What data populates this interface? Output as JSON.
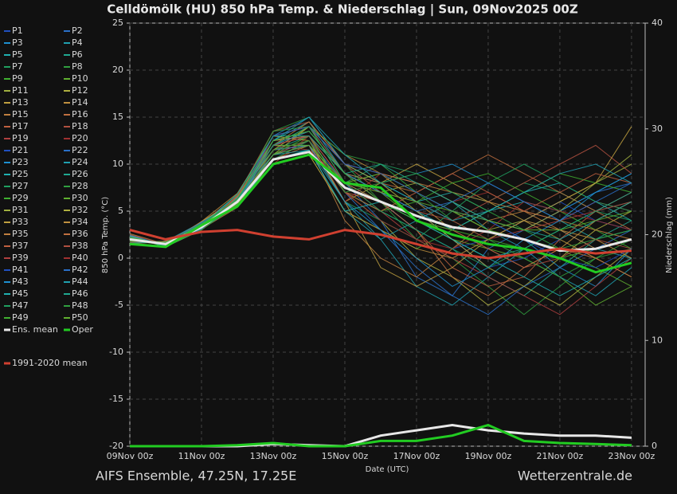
{
  "chart_data": {
    "type": "line",
    "title": "Celldömölk  (HU)  850 hPa Temp. & Niederschlag | Sun, 09Nov2025 00Z",
    "x_label": "Date (UTC)",
    "y_label": "850 hPa Temp. (°C)",
    "y2_label": "Niederschlag (mm)",
    "footer_left": "AIFS Ensemble, 47.25N, 17.25E",
    "footer_right": "Wetterzentrale.de",
    "categories": [
      "09Nov 00z",
      null,
      "11Nov 00z",
      null,
      "13Nov 00z",
      null,
      "15Nov 00z",
      null,
      "17Nov 00z",
      null,
      "19Nov 00z",
      null,
      "21Nov 00z",
      null,
      "23Nov 00z"
    ],
    "ylim": [
      -20,
      25
    ],
    "yticks": [
      -20,
      -15,
      -10,
      -5,
      0,
      5,
      10,
      15,
      20,
      25
    ],
    "y2lim": [
      0,
      40
    ],
    "y2ticks": [
      0,
      10,
      20,
      30,
      40
    ],
    "grid": true,
    "series": [
      {
        "name": "P1",
        "color": "#2050c0",
        "values": [
          2.2,
          1.4,
          3.2,
          6.5,
          12,
          13,
          9,
          7,
          5,
          2,
          -1,
          0,
          2,
          4,
          6
        ]
      },
      {
        "name": "P2",
        "color": "#2a70c8",
        "values": [
          1.8,
          1.6,
          3.6,
          5.8,
          11,
          12.5,
          8,
          4,
          -2,
          -4,
          1,
          3,
          5,
          7,
          8
        ]
      },
      {
        "name": "P3",
        "color": "#1e90d0",
        "values": [
          2.5,
          1.2,
          3.0,
          6.2,
          13,
          14,
          10,
          9,
          8,
          6,
          4,
          2,
          -1,
          -3,
          1
        ]
      },
      {
        "name": "P4",
        "color": "#20a0b0",
        "values": [
          1.6,
          1.8,
          3.8,
          5.5,
          10.5,
          11.5,
          6,
          2,
          -3,
          -5,
          -2,
          1,
          3,
          1,
          0
        ]
      },
      {
        "name": "P5",
        "color": "#20b0b0",
        "values": [
          2.0,
          1.5,
          3.4,
          6.0,
          12.5,
          14.5,
          9,
          8,
          6,
          7,
          5,
          6,
          4,
          2,
          3
        ]
      },
      {
        "name": "P6",
        "color": "#20a890",
        "values": [
          2.3,
          1.3,
          3.1,
          6.8,
          11.5,
          13,
          7,
          5,
          3,
          1,
          -2,
          -4,
          -1,
          2,
          4
        ]
      },
      {
        "name": "P7",
        "color": "#20a060",
        "values": [
          1.9,
          1.7,
          3.7,
          5.9,
          12,
          12,
          8,
          10,
          9,
          7,
          6,
          8,
          7,
          5,
          6
        ]
      },
      {
        "name": "P8",
        "color": "#30a040",
        "values": [
          2.1,
          1.4,
          3.3,
          6.3,
          13.5,
          15,
          10,
          6,
          2,
          0,
          -3,
          -6,
          -3,
          0,
          2
        ]
      },
      {
        "name": "P9",
        "color": "#40b030",
        "values": [
          1.7,
          1.6,
          3.5,
          5.7,
          10,
          11,
          5,
          3,
          1,
          3,
          5,
          7,
          9,
          8,
          7
        ]
      },
      {
        "name": "P10",
        "color": "#60b030",
        "values": [
          2.4,
          1.2,
          3.0,
          6.6,
          12,
          13.5,
          9,
          7,
          4,
          2,
          1,
          0,
          -2,
          -5,
          -3
        ]
      },
      {
        "name": "P11",
        "color": "#a0b040",
        "values": [
          2.0,
          1.5,
          3.6,
          6.1,
          11,
          14,
          8,
          9,
          7,
          5,
          3,
          4,
          6,
          8,
          10
        ]
      },
      {
        "name": "P12",
        "color": "#b0b040",
        "values": [
          1.8,
          1.7,
          3.4,
          5.6,
          12.5,
          13,
          7,
          4,
          0,
          -2,
          -5,
          -3,
          0,
          3,
          5
        ]
      },
      {
        "name": "P13",
        "color": "#c0a040",
        "values": [
          2.2,
          1.3,
          3.2,
          6.4,
          11.5,
          12,
          6,
          8,
          10,
          8,
          6,
          4,
          2,
          0,
          -2
        ]
      },
      {
        "name": "P14",
        "color": "#c09040",
        "values": [
          2.6,
          1.5,
          3.9,
          6.9,
          13,
          14,
          11,
          9,
          6,
          3,
          1,
          -1,
          1,
          4,
          6
        ]
      },
      {
        "name": "P15",
        "color": "#c08040",
        "values": [
          1.5,
          1.8,
          3.1,
          5.4,
          10.5,
          12,
          4,
          0,
          -2,
          1,
          4,
          5,
          3,
          1,
          2
        ]
      },
      {
        "name": "P16",
        "color": "#c07040",
        "values": [
          2.1,
          1.4,
          3.5,
          6.2,
          12,
          13,
          9,
          8,
          7,
          9,
          11,
          9,
          7,
          5,
          3
        ]
      },
      {
        "name": "P17",
        "color": "#c06040",
        "values": [
          1.9,
          1.6,
          3.3,
          5.8,
          11,
          12.5,
          7,
          6,
          3,
          -1,
          -3,
          -2,
          2,
          5,
          7
        ]
      },
      {
        "name": "P18",
        "color": "#b05040",
        "values": [
          2.3,
          1.2,
          3.7,
          6.7,
          13.5,
          14.5,
          10,
          7,
          5,
          4,
          6,
          8,
          10,
          12,
          9
        ]
      },
      {
        "name": "P19",
        "color": "#b04040",
        "values": [
          2.0,
          1.5,
          3.0,
          6.0,
          12,
          11.5,
          8,
          5,
          2,
          0,
          -2,
          -4,
          -6,
          -3,
          0
        ]
      },
      {
        "name": "P20",
        "color": "#a03030",
        "values": [
          1.7,
          1.7,
          3.6,
          5.5,
          10,
          13,
          6,
          9,
          8,
          6,
          7,
          5,
          4,
          6,
          5
        ]
      },
      {
        "name": "P21",
        "color": "#2050c0",
        "values": [
          2.4,
          1.3,
          3.4,
          6.5,
          12.5,
          13.5,
          9,
          6,
          3,
          1,
          2,
          4,
          6,
          4,
          3
        ]
      },
      {
        "name": "P22",
        "color": "#2a70c8",
        "values": [
          1.8,
          1.6,
          3.2,
          5.9,
          11.5,
          12,
          7,
          3,
          -1,
          -4,
          -6,
          -3,
          -1,
          1,
          3
        ]
      },
      {
        "name": "P23",
        "color": "#1e90d0",
        "values": [
          2.2,
          1.4,
          3.8,
          6.3,
          13,
          15,
          10,
          8,
          9,
          10,
          8,
          6,
          5,
          7,
          9
        ]
      },
      {
        "name": "P24",
        "color": "#20a0b0",
        "values": [
          1.6,
          1.8,
          3.1,
          5.6,
          11,
          11.5,
          5,
          2,
          4,
          6,
          3,
          1,
          -2,
          -4,
          -1
        ]
      },
      {
        "name": "P25",
        "color": "#20b0b0",
        "values": [
          2.5,
          1.2,
          3.5,
          6.8,
          12,
          14,
          9,
          7,
          5,
          3,
          5,
          7,
          8,
          6,
          4
        ]
      },
      {
        "name": "P26",
        "color": "#20a890",
        "values": [
          2.0,
          1.5,
          3.3,
          6.1,
          12.5,
          13,
          8,
          6,
          4,
          2,
          0,
          1,
          3,
          5,
          7
        ]
      },
      {
        "name": "P27",
        "color": "#20a060",
        "values": [
          1.9,
          1.7,
          3.6,
          5.7,
          10.5,
          12.5,
          6,
          4,
          2,
          5,
          8,
          10,
          8,
          6,
          5
        ]
      },
      {
        "name": "P28",
        "color": "#30a040",
        "values": [
          2.3,
          1.3,
          3.0,
          6.4,
          13.5,
          14,
          11,
          10,
          7,
          4,
          2,
          0,
          -2,
          0,
          1
        ]
      },
      {
        "name": "P29",
        "color": "#40b030",
        "values": [
          2.1,
          1.5,
          3.7,
          6.0,
          11,
          13,
          7,
          5,
          6,
          8,
          9,
          7,
          5,
          3,
          1
        ]
      },
      {
        "name": "P30",
        "color": "#60b030",
        "values": [
          1.7,
          1.6,
          3.4,
          5.8,
          12,
          12,
          8,
          9,
          7,
          5,
          3,
          2,
          1,
          -1,
          -3
        ]
      },
      {
        "name": "P31",
        "color": "#a0b040",
        "values": [
          2.2,
          1.4,
          3.2,
          6.6,
          12.5,
          13.5,
          9,
          7,
          8,
          6,
          4,
          3,
          5,
          8,
          11
        ]
      },
      {
        "name": "P32",
        "color": "#b0b040",
        "values": [
          1.8,
          1.7,
          3.5,
          5.5,
          11.5,
          14,
          10,
          8,
          5,
          2,
          -1,
          -3,
          -5,
          -2,
          1
        ]
      },
      {
        "name": "P33",
        "color": "#c0a040",
        "values": [
          2.4,
          1.3,
          3.9,
          6.2,
          13,
          12.5,
          6,
          -1,
          -3,
          -1,
          2,
          4,
          6,
          8,
          14
        ]
      },
      {
        "name": "P34",
        "color": "#c09040",
        "values": [
          2.0,
          1.5,
          3.1,
          6.0,
          10,
          11,
          5,
          3,
          1,
          0,
          2,
          4,
          3,
          2,
          0
        ]
      },
      {
        "name": "P35",
        "color": "#c08040",
        "values": [
          1.6,
          1.8,
          3.6,
          5.9,
          12,
          14.5,
          10,
          9,
          8,
          7,
          6,
          5,
          4,
          3,
          2
        ]
      },
      {
        "name": "P36",
        "color": "#c07040",
        "values": [
          2.3,
          1.2,
          3.3,
          6.5,
          12.5,
          13,
          8,
          6,
          3,
          -2,
          -4,
          -1,
          1,
          0,
          -2
        ]
      },
      {
        "name": "P37",
        "color": "#c06040",
        "values": [
          2.1,
          1.6,
          3.4,
          6.3,
          11,
          12,
          7,
          5,
          7,
          9,
          7,
          5,
          7,
          9,
          8
        ]
      },
      {
        "name": "P38",
        "color": "#b05040",
        "values": [
          1.9,
          1.4,
          3.7,
          5.7,
          13,
          14,
          9,
          6,
          4,
          3,
          1,
          -1,
          0,
          2,
          1
        ]
      },
      {
        "name": "P39",
        "color": "#b04040",
        "values": [
          2.5,
          1.5,
          3.0,
          6.7,
          12,
          13,
          8,
          7,
          6,
          4,
          2,
          3,
          4,
          5,
          6
        ]
      },
      {
        "name": "P40",
        "color": "#a03030",
        "values": [
          1.7,
          1.7,
          3.5,
          5.6,
          11.5,
          12.5,
          7,
          4,
          2,
          1,
          3,
          6,
          5,
          4,
          3
        ]
      },
      {
        "name": "P41",
        "color": "#2050c0",
        "values": [
          2.2,
          1.3,
          3.2,
          6.1,
          13,
          14,
          10,
          9,
          7,
          5,
          4,
          2,
          0,
          -1,
          1
        ]
      },
      {
        "name": "P42",
        "color": "#2a70c8",
        "values": [
          1.8,
          1.6,
          3.8,
          5.9,
          12,
          13.5,
          9,
          7,
          5,
          6,
          8,
          6,
          4,
          6,
          8
        ]
      },
      {
        "name": "P43",
        "color": "#1e90d0",
        "values": [
          2.4,
          1.4,
          3.1,
          6.4,
          11,
          12,
          6,
          3,
          0,
          -3,
          -1,
          2,
          4,
          7,
          9
        ]
      },
      {
        "name": "P44",
        "color": "#20a0b0",
        "values": [
          2.0,
          1.5,
          3.6,
          6.0,
          12.5,
          15,
          11,
          8,
          6,
          4,
          5,
          7,
          9,
          10,
          8
        ]
      },
      {
        "name": "P45",
        "color": "#20b0b0",
        "values": [
          1.6,
          1.7,
          3.3,
          5.5,
          10.5,
          11.5,
          5,
          6,
          4,
          2,
          0,
          -2,
          -4,
          -2,
          0
        ]
      },
      {
        "name": "P46",
        "color": "#20a890",
        "values": [
          2.3,
          1.2,
          3.4,
          6.8,
          13,
          13,
          9,
          10,
          8,
          6,
          4,
          3,
          2,
          4,
          6
        ]
      },
      {
        "name": "P47",
        "color": "#20a060",
        "values": [
          2.1,
          1.6,
          3.7,
          6.2,
          12,
          14,
          8,
          5,
          3,
          1,
          -1,
          1,
          3,
          5,
          4
        ]
      },
      {
        "name": "P48",
        "color": "#30a040",
        "values": [
          1.9,
          1.4,
          3.0,
          5.8,
          11.5,
          12.5,
          7,
          8,
          9,
          7,
          5,
          3,
          1,
          2,
          3
        ]
      },
      {
        "name": "P49",
        "color": "#40b030",
        "values": [
          2.2,
          1.5,
          3.5,
          6.3,
          12.5,
          13.5,
          9,
          6,
          4,
          3,
          2,
          1,
          0,
          1,
          2
        ]
      },
      {
        "name": "P50",
        "color": "#60b030",
        "values": [
          1.8,
          1.7,
          3.3,
          5.7,
          11,
          12,
          8,
          7,
          6,
          5,
          4,
          3,
          3,
          4,
          5
        ]
      },
      {
        "name": "Ens. mean",
        "color": "#e8e8e8",
        "values": [
          2,
          1.5,
          3.3,
          6,
          10.5,
          11.3,
          7.5,
          6,
          4.5,
          3.3,
          2.8,
          2.0,
          0.8,
          1.0,
          2.0
        ]
      },
      {
        "name": "Oper",
        "color": "#22cc22",
        "values": [
          1.5,
          1.2,
          3.5,
          5.5,
          10,
          11,
          8,
          7.5,
          4,
          2.5,
          1.5,
          1,
          0,
          -1.5,
          -0.5
        ]
      },
      {
        "name": "1991-2020 mean",
        "color": "#d04030",
        "values": [
          3,
          2,
          2.8,
          3,
          2.3,
          2,
          3,
          2.5,
          1.5,
          0.5,
          0,
          0.5,
          1,
          0.5,
          0.8
        ]
      },
      {
        "name": "Ens. mean",
        "color": "#e8e8e8",
        "axis": "y2",
        "values": [
          0,
          0,
          0,
          0,
          0.2,
          0.1,
          0,
          1,
          1.5,
          2,
          1.5,
          1.2,
          1,
          1,
          0.8
        ]
      },
      {
        "name": "Oper",
        "color": "#22cc22",
        "axis": "y2",
        "values": [
          0,
          0,
          0,
          0.1,
          0.3,
          0,
          0,
          0.5,
          0.5,
          1,
          2,
          0.5,
          0.3,
          0.2,
          0.1
        ]
      }
    ]
  }
}
